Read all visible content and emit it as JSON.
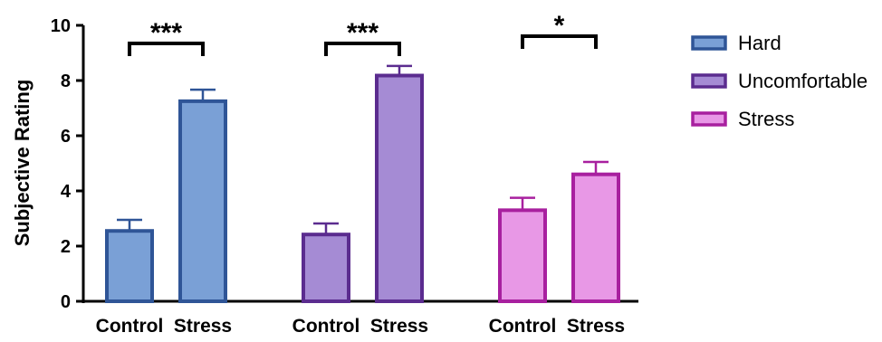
{
  "chart_data": {
    "type": "bar",
    "title": "",
    "xlabel": "",
    "ylabel": "Subjective  Rating",
    "ylim": [
      0,
      10
    ],
    "yticks": [
      0,
      2,
      4,
      6,
      8,
      10
    ],
    "grid": false,
    "legend_position": "right",
    "groups": [
      {
        "name": "Hard",
        "fill": "#7aa0d6",
        "stroke": "#2f5597",
        "bars": [
          {
            "category": "Control",
            "value": 2.55,
            "error": 0.4
          },
          {
            "category": "Stress",
            "value": 7.25,
            "error": 0.42
          }
        ],
        "significance": "***"
      },
      {
        "name": "Uncomfortable",
        "fill": "#a58bd4",
        "stroke": "#5b2c8f",
        "bars": [
          {
            "category": "Control",
            "value": 2.42,
            "error": 0.4
          },
          {
            "category": "Stress",
            "value": 8.18,
            "error": 0.35
          }
        ],
        "significance": "***"
      },
      {
        "name": "Stress",
        "fill": "#e898e6",
        "stroke": "#a8209f",
        "bars": [
          {
            "category": "Control",
            "value": 3.3,
            "error": 0.45
          },
          {
            "category": "Stress",
            "value": 4.6,
            "error": 0.45
          }
        ],
        "significance": "*"
      }
    ]
  }
}
